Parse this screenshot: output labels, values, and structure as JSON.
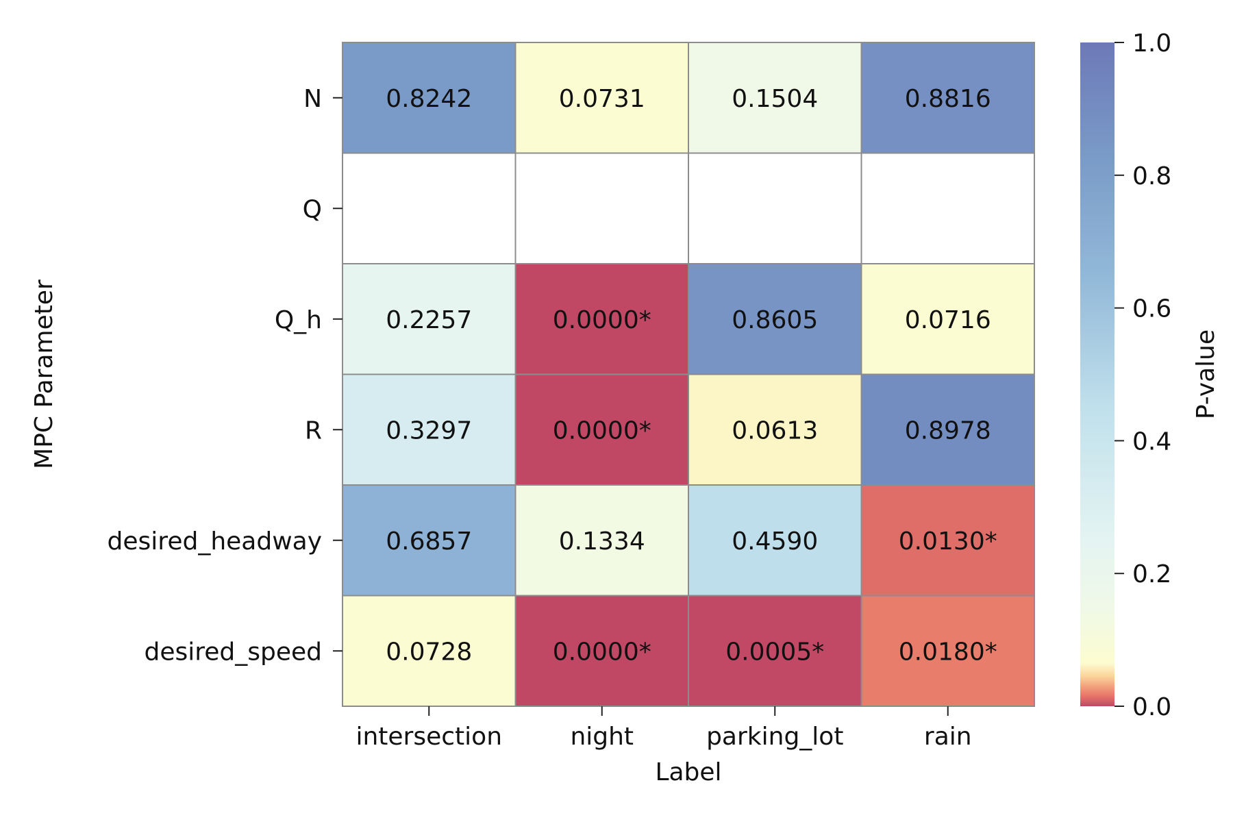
{
  "chart_data": {
    "type": "heatmap",
    "xlabel": "Label",
    "ylabel": "MPC Parameter",
    "x_categories": [
      "intersection",
      "night",
      "parking_lot",
      "rain"
    ],
    "y_categories": [
      "N",
      "Q",
      "Q_h",
      "R",
      "desired_headway",
      "desired_speed"
    ],
    "values": [
      [
        0.8242,
        0.0731,
        0.1504,
        0.8816
      ],
      [
        null,
        null,
        null,
        null
      ],
      [
        0.2257,
        0.0,
        0.8605,
        0.0716
      ],
      [
        0.3297,
        0.0,
        0.0613,
        0.8978
      ],
      [
        0.6857,
        0.1334,
        0.459,
        0.013
      ],
      [
        0.0728,
        0.0,
        0.0005,
        0.018
      ]
    ],
    "annotations": [
      [
        "0.8242",
        "0.0731",
        "0.1504",
        "0.8816"
      ],
      [
        "",
        "",
        "",
        ""
      ],
      [
        "0.2257",
        "0.0000*",
        "0.8605",
        "0.0716"
      ],
      [
        "0.3297",
        "0.0000*",
        "0.0613",
        "0.8978"
      ],
      [
        "0.6857",
        "0.1334",
        "0.4590",
        "0.0130*"
      ],
      [
        "0.0728",
        "0.0000*",
        "0.0005*",
        "0.0180*"
      ]
    ],
    "colorbar": {
      "label": "P-value",
      "ticks": [
        0.0,
        0.2,
        0.4,
        0.6,
        0.8,
        1.0
      ],
      "tick_labels": [
        "0.0",
        "0.2",
        "0.4",
        "0.6",
        "0.8",
        "1.0"
      ],
      "range": [
        0,
        1
      ],
      "colormap": "Spectral",
      "color_stops": [
        {
          "v": 0.0,
          "c": "#c04865"
        },
        {
          "v": 0.015,
          "c": "#e57468"
        },
        {
          "v": 0.03,
          "c": "#f2a27c"
        },
        {
          "v": 0.045,
          "c": "#fbd49a"
        },
        {
          "v": 0.065,
          "c": "#fcfcd0"
        },
        {
          "v": 0.15,
          "c": "#f0f9e8"
        },
        {
          "v": 0.25,
          "c": "#e4f4f2"
        },
        {
          "v": 0.45,
          "c": "#c0e0ec"
        },
        {
          "v": 0.65,
          "c": "#92b8d8"
        },
        {
          "v": 0.82,
          "c": "#7a9cc8"
        },
        {
          "v": 1.0,
          "c": "#6d79b8"
        }
      ]
    },
    "grid_line_color": "#8c8c8c",
    "missing_color": "#ffffff"
  }
}
